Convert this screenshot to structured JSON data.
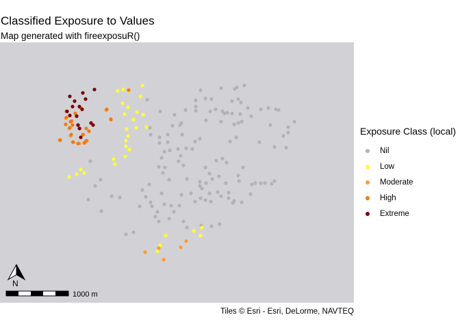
{
  "title": "Classified Exposure to Values",
  "subtitle": "Map generated with fireexposuR()",
  "caption": "Tiles © Esri - Esri, DeLorme, NAVTEQ",
  "north_arrow_label": "N",
  "scale_bar_label": "1000 m",
  "legend": {
    "title": "Exposure Class (local)",
    "items": [
      {
        "label": "Nil",
        "color": "#b3b3b3"
      },
      {
        "label": "Low",
        "color": "#ffff33"
      },
      {
        "label": "Moderate",
        "color": "#ff9933"
      },
      {
        "label": "High",
        "color": "#f07a10"
      },
      {
        "label": "Extreme",
        "color": "#7a0000"
      }
    ]
  }
}
